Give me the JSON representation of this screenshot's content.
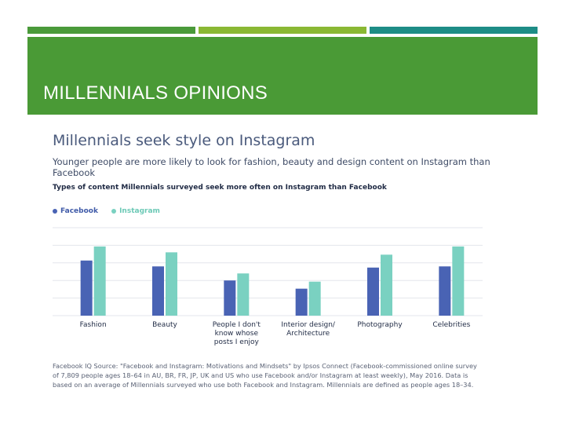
{
  "slide": {
    "title": "MILLENNIALS OPINIONS"
  },
  "colors": {
    "facebook": "#4963b4",
    "instagram": "#7ad1c1",
    "band": "#4a9a36"
  },
  "chart_data": {
    "type": "bar",
    "title": "Millennials seek style on Instagram",
    "subtitle": "Younger people are more likely to look for fashion, beauty and design content on Instagram than Facebook",
    "caption": "Types of content Millennials surveyed seek more often on Instagram than Facebook",
    "categories": [
      [
        "Fashion"
      ],
      [
        "Beauty"
      ],
      [
        "People I don't",
        "know whose",
        "posts I enjoy"
      ],
      [
        "Interior design/",
        "Architecture"
      ],
      [
        "Photography"
      ],
      [
        "Celebrities"
      ]
    ],
    "series": [
      {
        "name": "Facebook",
        "values": [
          47,
          42,
          30,
          23,
          41,
          42
        ]
      },
      {
        "name": "Instagram",
        "values": [
          59,
          54,
          36,
          29,
          52,
          59
        ]
      }
    ],
    "ylim": [
      0,
      75
    ],
    "grid": true,
    "legend": "top-left",
    "source": "Facebook IQ Source: \"Facebook and Instagram: Motivations and Mindsets\" by Ipsos Connect (Facebook-commissioned online survey of 7,809 people ages 18–64 in AU, BR, FR, JP, UK and US who use Facebook and/or Instagram at least weekly), May 2016. Data is based on an average of Millennials surveyed who use both Facebook and Instagram. Millennials are defined as people ages 18–34."
  }
}
